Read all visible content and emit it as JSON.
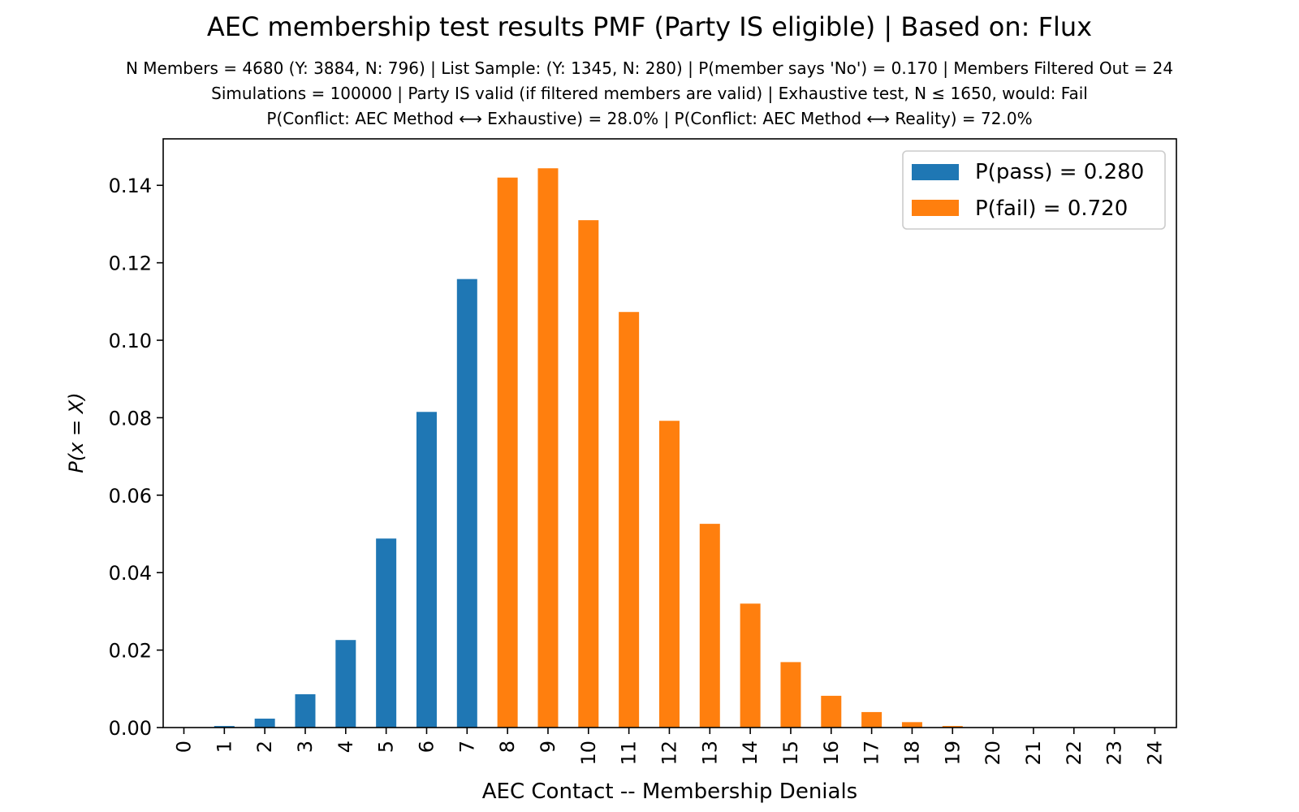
{
  "chart_data": {
    "type": "bar",
    "title": "AEC membership test results PMF (Party IS eligible) | Based on: Flux",
    "subtitle_lines": [
      "N Members = 4680 (Y: 3884, N: 796) | List Sample: (Y: 1345, N: 280) | P(member says 'No') = 0.170 | Members Filtered Out = 24",
      "Simulations = 100000 | Party IS valid (if filtered members are valid) | Exhaustive test, N ≤ 1650, would: Fail",
      "P(Conflict: AEC Method ⟷ Exhaustive) = 28.0% | P(Conflict: AEC Method ⟷ Reality) = 72.0%"
    ],
    "xlabel": "AEC Contact -- Membership Denials",
    "ylabel": "P(x = X)",
    "categories": [
      "0",
      "1",
      "2",
      "3",
      "4",
      "5",
      "6",
      "7",
      "8",
      "9",
      "10",
      "11",
      "12",
      "13",
      "14",
      "15",
      "16",
      "17",
      "18",
      "19",
      "20",
      "21",
      "22",
      "23",
      "24"
    ],
    "values": [
      5e-05,
      0.0004,
      0.0023,
      0.0086,
      0.0226,
      0.0488,
      0.0815,
      0.1158,
      0.142,
      0.1444,
      0.131,
      0.1073,
      0.0792,
      0.0526,
      0.032,
      0.0169,
      0.0082,
      0.004,
      0.0014,
      0.0004,
      0.0001,
      3e-05,
      1e-05,
      0,
      0
    ],
    "pass_max_x": 7,
    "series": [
      {
        "name": "P(pass) = 0.280",
        "color": "#1f77b4"
      },
      {
        "name": "P(fail) = 0.720",
        "color": "#ff7f0e"
      }
    ],
    "yticks": [
      "0.00",
      "0.02",
      "0.04",
      "0.06",
      "0.08",
      "0.10",
      "0.12",
      "0.14"
    ],
    "ylim": [
      0,
      0.152
    ],
    "grid": false,
    "legend_position": "top-right"
  }
}
